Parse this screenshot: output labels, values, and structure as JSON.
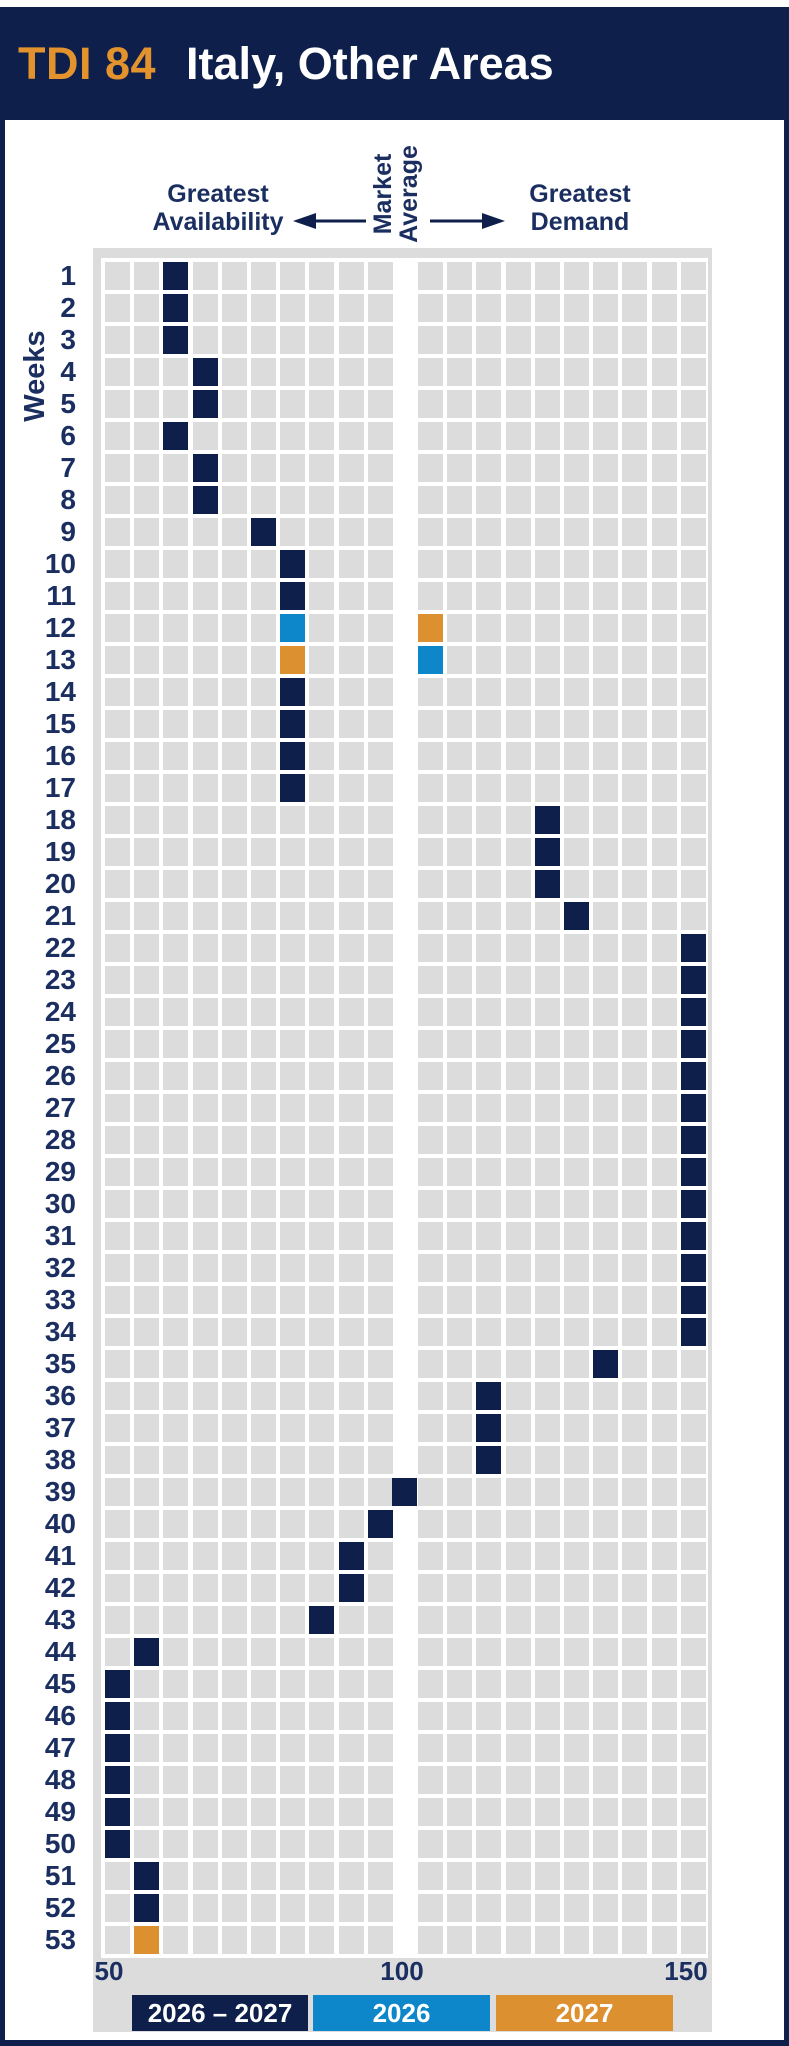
{
  "header": {
    "code": "TDI 84",
    "region": "Italy, Other Areas"
  },
  "axis_labels": {
    "left": [
      "Greatest",
      "Availability"
    ],
    "center": [
      "Market",
      "Average"
    ],
    "right": [
      "Greatest",
      "Demand"
    ],
    "weeks": "Weeks",
    "x_ticks": [
      "50",
      "100",
      "150"
    ]
  },
  "colors": {
    "navy": "#0d1f4a",
    "blue": "#0e86ca",
    "orange": "#dc9030",
    "cell_gray": "#dcdcdc",
    "text_navy": "#1b2e60",
    "header_code_orange": "#e2932d",
    "white": "#ffffff"
  },
  "colors_by_series": {
    "2026-2027": "#0d1f4a",
    "2026": "#0e86ca",
    "2027": "#dc9030"
  },
  "legend": [
    {
      "label": "2026 – 2027",
      "series": "2026-2027"
    },
    {
      "label": "2026",
      "series": "2026"
    },
    {
      "label": "2027",
      "series": "2027"
    }
  ],
  "chart_data": {
    "type": "heatmap",
    "title": "TDI 84 Italy, Other Areas",
    "xlabel_left": "Greatest Availability",
    "xlabel_center": "Market Average",
    "xlabel_right": "Greatest Demand",
    "ylabel": "Weeks",
    "x_axis": {
      "min": 50,
      "max": 150,
      "ticks": [
        50,
        100,
        150
      ],
      "bin_size": 5,
      "market_average": 100
    },
    "slot_tdi_ranges": [
      "50–55",
      "55–60",
      "60–65",
      "65–70",
      "70–75",
      "75–80",
      "80–85",
      "85–90",
      "90–95",
      "95–100",
      "100 (market average)",
      "100–105",
      "105–110",
      "110–115",
      "115–120",
      "120–125",
      "125–130",
      "130–135",
      "135–140",
      "140–145",
      "145–150"
    ],
    "weeks": [
      {
        "week": 1,
        "marks": [
          {
            "series": "2026-2027",
            "slot": 2
          }
        ]
      },
      {
        "week": 2,
        "marks": [
          {
            "series": "2026-2027",
            "slot": 2
          }
        ]
      },
      {
        "week": 3,
        "marks": [
          {
            "series": "2026-2027",
            "slot": 2
          }
        ]
      },
      {
        "week": 4,
        "marks": [
          {
            "series": "2026-2027",
            "slot": 3
          }
        ]
      },
      {
        "week": 5,
        "marks": [
          {
            "series": "2026-2027",
            "slot": 3
          }
        ]
      },
      {
        "week": 6,
        "marks": [
          {
            "series": "2026-2027",
            "slot": 2
          }
        ]
      },
      {
        "week": 7,
        "marks": [
          {
            "series": "2026-2027",
            "slot": 3
          }
        ]
      },
      {
        "week": 8,
        "marks": [
          {
            "series": "2026-2027",
            "slot": 3
          }
        ]
      },
      {
        "week": 9,
        "marks": [
          {
            "series": "2026-2027",
            "slot": 5
          }
        ]
      },
      {
        "week": 10,
        "marks": [
          {
            "series": "2026-2027",
            "slot": 6
          }
        ]
      },
      {
        "week": 11,
        "marks": [
          {
            "series": "2026-2027",
            "slot": 6
          }
        ]
      },
      {
        "week": 12,
        "marks": [
          {
            "series": "2026",
            "slot": 6
          },
          {
            "series": "2027",
            "slot": 11
          }
        ]
      },
      {
        "week": 13,
        "marks": [
          {
            "series": "2027",
            "slot": 6
          },
          {
            "series": "2026",
            "slot": 11
          }
        ]
      },
      {
        "week": 14,
        "marks": [
          {
            "series": "2026-2027",
            "slot": 6
          }
        ]
      },
      {
        "week": 15,
        "marks": [
          {
            "series": "2026-2027",
            "slot": 6
          }
        ]
      },
      {
        "week": 16,
        "marks": [
          {
            "series": "2026-2027",
            "slot": 6
          }
        ]
      },
      {
        "week": 17,
        "marks": [
          {
            "series": "2026-2027",
            "slot": 6
          }
        ]
      },
      {
        "week": 18,
        "marks": [
          {
            "series": "2026-2027",
            "slot": 15
          }
        ]
      },
      {
        "week": 19,
        "marks": [
          {
            "series": "2026-2027",
            "slot": 15
          }
        ]
      },
      {
        "week": 20,
        "marks": [
          {
            "series": "2026-2027",
            "slot": 15
          }
        ]
      },
      {
        "week": 21,
        "marks": [
          {
            "series": "2026-2027",
            "slot": 16
          }
        ]
      },
      {
        "week": 22,
        "marks": [
          {
            "series": "2026-2027",
            "slot": 20
          }
        ]
      },
      {
        "week": 23,
        "marks": [
          {
            "series": "2026-2027",
            "slot": 20
          }
        ]
      },
      {
        "week": 24,
        "marks": [
          {
            "series": "2026-2027",
            "slot": 20
          }
        ]
      },
      {
        "week": 25,
        "marks": [
          {
            "series": "2026-2027",
            "slot": 20
          }
        ]
      },
      {
        "week": 26,
        "marks": [
          {
            "series": "2026-2027",
            "slot": 20
          }
        ]
      },
      {
        "week": 27,
        "marks": [
          {
            "series": "2026-2027",
            "slot": 20
          }
        ]
      },
      {
        "week": 28,
        "marks": [
          {
            "series": "2026-2027",
            "slot": 20
          }
        ]
      },
      {
        "week": 29,
        "marks": [
          {
            "series": "2026-2027",
            "slot": 20
          }
        ]
      },
      {
        "week": 30,
        "marks": [
          {
            "series": "2026-2027",
            "slot": 20
          }
        ]
      },
      {
        "week": 31,
        "marks": [
          {
            "series": "2026-2027",
            "slot": 20
          }
        ]
      },
      {
        "week": 32,
        "marks": [
          {
            "series": "2026-2027",
            "slot": 20
          }
        ]
      },
      {
        "week": 33,
        "marks": [
          {
            "series": "2026-2027",
            "slot": 20
          }
        ]
      },
      {
        "week": 34,
        "marks": [
          {
            "series": "2026-2027",
            "slot": 20
          }
        ]
      },
      {
        "week": 35,
        "marks": [
          {
            "series": "2026-2027",
            "slot": 17
          }
        ]
      },
      {
        "week": 36,
        "marks": [
          {
            "series": "2026-2027",
            "slot": 13
          }
        ]
      },
      {
        "week": 37,
        "marks": [
          {
            "series": "2026-2027",
            "slot": 13
          }
        ]
      },
      {
        "week": 38,
        "marks": [
          {
            "series": "2026-2027",
            "slot": 13
          }
        ]
      },
      {
        "week": 39,
        "marks": [
          {
            "series": "2026-2027",
            "slot": 10
          }
        ]
      },
      {
        "week": 40,
        "marks": [
          {
            "series": "2026-2027",
            "slot": 9
          }
        ]
      },
      {
        "week": 41,
        "marks": [
          {
            "series": "2026-2027",
            "slot": 8
          }
        ]
      },
      {
        "week": 42,
        "marks": [
          {
            "series": "2026-2027",
            "slot": 8
          }
        ]
      },
      {
        "week": 43,
        "marks": [
          {
            "series": "2026-2027",
            "slot": 7
          }
        ]
      },
      {
        "week": 44,
        "marks": [
          {
            "series": "2026-2027",
            "slot": 1
          }
        ]
      },
      {
        "week": 45,
        "marks": [
          {
            "series": "2026-2027",
            "slot": 0
          }
        ]
      },
      {
        "week": 46,
        "marks": [
          {
            "series": "2026-2027",
            "slot": 0
          }
        ]
      },
      {
        "week": 47,
        "marks": [
          {
            "series": "2026-2027",
            "slot": 0
          }
        ]
      },
      {
        "week": 48,
        "marks": [
          {
            "series": "2026-2027",
            "slot": 0
          }
        ]
      },
      {
        "week": 49,
        "marks": [
          {
            "series": "2026-2027",
            "slot": 0
          }
        ]
      },
      {
        "week": 50,
        "marks": [
          {
            "series": "2026-2027",
            "slot": 0
          }
        ]
      },
      {
        "week": 51,
        "marks": [
          {
            "series": "2026-2027",
            "slot": 1
          }
        ]
      },
      {
        "week": 52,
        "marks": [
          {
            "series": "2026-2027",
            "slot": 1
          }
        ]
      },
      {
        "week": 53,
        "marks": [
          {
            "series": "2027",
            "slot": 1
          }
        ]
      }
    ]
  }
}
